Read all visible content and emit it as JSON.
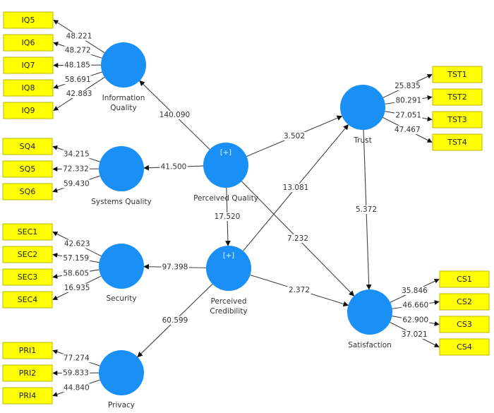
{
  "colors": {
    "latent": "#1a8ff5",
    "indicator": "#ffff00",
    "line": "#444444"
  },
  "latents": [
    {
      "id": "IQ",
      "label": [
        "Information",
        "Quality"
      ],
      "expandable": false,
      "indicators": [
        {
          "name": "IQ5",
          "value": "48.221"
        },
        {
          "name": "IQ6",
          "value": "48.272"
        },
        {
          "name": "IQ7",
          "value": "48.185"
        },
        {
          "name": "IQ8",
          "value": "58.691"
        },
        {
          "name": "IQ9",
          "value": "42.883"
        }
      ]
    },
    {
      "id": "SQ",
      "label": [
        "Systems Quality"
      ],
      "expandable": false,
      "indicators": [
        {
          "name": "SQ4",
          "value": "34.215"
        },
        {
          "name": "SQ5",
          "value": "72.332"
        },
        {
          "name": "SQ6",
          "value": "59.430"
        }
      ]
    },
    {
      "id": "SEC",
      "label": [
        "Security"
      ],
      "expandable": false,
      "indicators": [
        {
          "name": "SEC1",
          "value": "42.623"
        },
        {
          "name": "SEC2",
          "value": "57.159"
        },
        {
          "name": "SEC3",
          "value": "58.605"
        },
        {
          "name": "SEC4",
          "value": "16.935"
        }
      ]
    },
    {
      "id": "PRI",
      "label": [
        "Privacy"
      ],
      "expandable": false,
      "indicators": [
        {
          "name": "PRI1",
          "value": "77.274"
        },
        {
          "name": "PRI2",
          "value": "59.833"
        },
        {
          "name": "PRI4",
          "value": "44.840"
        }
      ]
    },
    {
      "id": "PQ",
      "label": [
        "Perceived Quality"
      ],
      "expandable": true,
      "badge": "[+]",
      "indicators": []
    },
    {
      "id": "PC",
      "label": [
        "Perceived",
        "Credibility"
      ],
      "expandable": true,
      "badge": "[+]",
      "indicators": []
    },
    {
      "id": "TR",
      "label": [
        "Trust"
      ],
      "expandable": false,
      "indicators": [
        {
          "name": "TST1",
          "value": "25.835"
        },
        {
          "name": "TST2",
          "value": "80.291"
        },
        {
          "name": "TST3",
          "value": "27.051"
        },
        {
          "name": "TST4",
          "value": "47.467"
        }
      ]
    },
    {
      "id": "SAT",
      "label": [
        "Satisfaction"
      ],
      "expandable": false,
      "indicators": [
        {
          "name": "CS1",
          "value": "35.846"
        },
        {
          "name": "CS2",
          "value": "46.660"
        },
        {
          "name": "CS3",
          "value": "62.900"
        },
        {
          "name": "CS4",
          "value": "37.021"
        }
      ]
    }
  ],
  "paths": [
    {
      "from": "PQ",
      "to": "IQ",
      "value": "140.090"
    },
    {
      "from": "PQ",
      "to": "SQ",
      "value": "41.500"
    },
    {
      "from": "PQ",
      "to": "TR",
      "value": "3.502"
    },
    {
      "from": "PQ",
      "to": "PC",
      "value": "17.520"
    },
    {
      "from": "PQ",
      "to": "SAT",
      "value": "7.232"
    },
    {
      "from": "PC",
      "to": "TR",
      "value": "13.081"
    },
    {
      "from": "PC",
      "to": "SEC",
      "value": "97.398"
    },
    {
      "from": "PC",
      "to": "SAT",
      "value": "2.372"
    },
    {
      "from": "PC",
      "to": "PRI",
      "value": "60.599"
    },
    {
      "from": "TR",
      "to": "SAT",
      "value": "5.372"
    }
  ]
}
